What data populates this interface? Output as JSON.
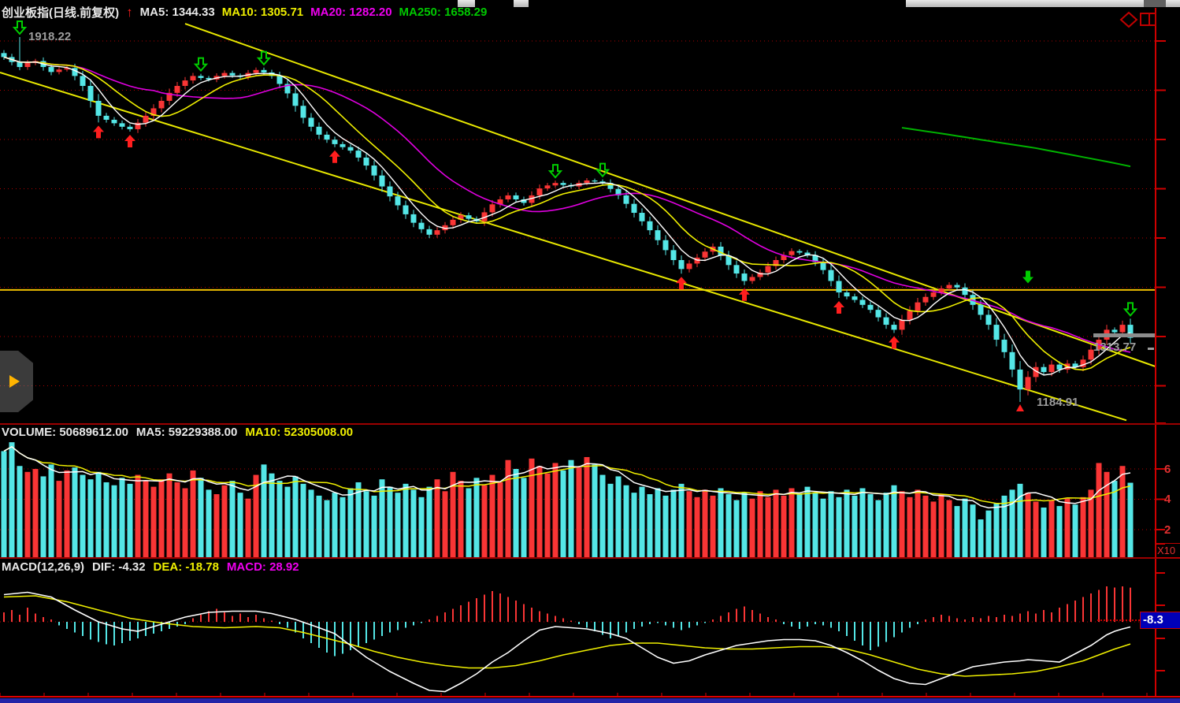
{
  "colors": {
    "up": "#f93535",
    "down": "#54e6e6",
    "ma5": "#ffffff",
    "ma10": "#efef00",
    "ma20": "#e000e0",
    "ma250": "#00b400",
    "grid": "#b00000",
    "axis": "#d00000",
    "trend": "#e8e800",
    "label_grey": "#9c9c9c",
    "badge_bg": "#0000b8",
    "buy_arrow": "#ff1e1e",
    "sell_arrow": "#00cc00"
  },
  "header": {
    "title": "创业板指(日线.前复权)",
    "trend_icon": "up-arrow",
    "ma5": "MA5: 1344.33",
    "ma10": "MA10: 1305.71",
    "ma20": "MA20: 1282.20",
    "ma250": "MA250: 1658.29"
  },
  "main": {
    "high_label": "1918.22",
    "low_label": "1184.91",
    "last_label": "1313.77"
  },
  "volume_pane": {
    "volume": "VOLUME: 50689612.00",
    "ma5": "MA5: 59229388.00",
    "ma10": "MA10: 52305008.00",
    "axis": {
      "t6": "6",
      "t4": "4",
      "t2": "2",
      "unit": "X10"
    }
  },
  "macd_pane": {
    "title": "MACD(12,26,9)",
    "dif": "DIF: -4.32",
    "dea": "DEA: -18.78",
    "macd": "MACD: 28.92",
    "badge": "-8.3"
  },
  "chart_data": {
    "type": "candlestick",
    "symbol": "创业板指",
    "period": "日线.前复权",
    "indicators": {
      "ma5": 1344.33,
      "ma10": 1305.71,
      "ma20": 1282.2,
      "ma250": 1658.29
    },
    "price": {
      "high_marker": 1918.22,
      "low_marker": 1184.91,
      "last": 1313.77,
      "horizontal_line": 1410,
      "closes": [
        1878,
        1868,
        1858,
        1866,
        1870,
        1858,
        1848,
        1853,
        1856,
        1840,
        1820,
        1790,
        1760,
        1752,
        1745,
        1738,
        1733,
        1746,
        1760,
        1775,
        1790,
        1806,
        1820,
        1831,
        1840,
        1836,
        1833,
        1840,
        1846,
        1841,
        1838,
        1846,
        1852,
        1847,
        1840,
        1824,
        1805,
        1780,
        1756,
        1738,
        1722,
        1712,
        1703,
        1697,
        1690,
        1676,
        1660,
        1640,
        1618,
        1598,
        1580,
        1562,
        1545,
        1532,
        1521,
        1530,
        1540,
        1551,
        1560,
        1553,
        1548,
        1566,
        1582,
        1592,
        1600,
        1592,
        1585,
        1600,
        1614,
        1620,
        1625,
        1621,
        1618,
        1625,
        1630,
        1628,
        1625,
        1613,
        1600,
        1583,
        1565,
        1548,
        1530,
        1510,
        1490,
        1470,
        1452,
        1463,
        1475,
        1487,
        1497,
        1479,
        1460,
        1443,
        1428,
        1436,
        1445,
        1458,
        1470,
        1480,
        1488,
        1485,
        1480,
        1466,
        1450,
        1428,
        1405,
        1397,
        1390,
        1380,
        1370,
        1355,
        1340,
        1330,
        1350,
        1368,
        1385,
        1396,
        1405,
        1413,
        1420,
        1415,
        1400,
        1380,
        1360,
        1340,
        1310,
        1285,
        1250,
        1210,
        1235,
        1255,
        1245,
        1260,
        1250,
        1262,
        1255,
        1270,
        1290,
        1310,
        1330,
        1325,
        1340,
        1313.77
      ],
      "wick_overrides": {
        "2": {
          "high": 1918.22
        },
        "129": {
          "low": 1184.91
        }
      },
      "trendlines": [
        {
          "from_i": 23,
          "from_price": 1945,
          "to_i": 146.2,
          "to_price": 1256
        },
        {
          "from_i": -0.5,
          "from_price": 1847,
          "to_i": 142.5,
          "to_price": 1148
        }
      ],
      "ma250_points": [
        [
          114,
          1736
        ],
        [
          120,
          1722
        ],
        [
          126,
          1707
        ],
        [
          131,
          1695
        ],
        [
          136,
          1680
        ],
        [
          140,
          1668
        ],
        [
          143,
          1658.29
        ]
      ],
      "buy_arrow_idx": [
        12,
        16,
        42,
        86,
        94,
        106,
        113
      ],
      "sell_arrow_idx": [
        2,
        25,
        33,
        70,
        76,
        143
      ],
      "sell_solid_arrows": [
        {
          "i": 130,
          "price": 1436
        }
      ],
      "low_triangle_idx": [
        129
      ]
    },
    "volume": {
      "current": 50689612,
      "ma5": 59229388,
      "ma10": 52305008,
      "unit_scale": "x10^7",
      "axis_ticks": [
        6,
        4,
        2
      ],
      "values_e7": [
        7.2,
        7.8,
        6.2,
        5.8,
        6.0,
        5.5,
        6.3,
        5.2,
        5.9,
        6.1,
        5.6,
        5.3,
        5.8,
        5.1,
        4.9,
        5.4,
        5.0,
        5.6,
        5.2,
        4.8,
        5.3,
        5.7,
        5.1,
        4.7,
        5.9,
        5.4,
        4.6,
        4.3,
        4.9,
        5.2,
        4.4,
        4.0,
        5.6,
        6.3,
        5.7,
        5.2,
        4.8,
        5.5,
        5.0,
        4.6,
        4.2,
        3.9,
        4.4,
        4.1,
        4.7,
        5.1,
        4.5,
        4.2,
        5.3,
        4.8,
        4.4,
        5.0,
        4.6,
        4.1,
        4.8,
        5.3,
        4.5,
        5.8,
        5.2,
        4.7,
        5.4,
        4.9,
        5.6,
        5.1,
        6.6,
        6.0,
        5.4,
        6.7,
        6.2,
        5.7,
        6.4,
        5.9,
        6.6,
        6.1,
        6.8,
        6.3,
        5.6,
        5.0,
        5.5,
        4.9,
        4.4,
        4.8,
        4.3,
        4.7,
        4.2,
        4.6,
        5.0,
        4.5,
        4.1,
        4.6,
        4.2,
        4.7,
        4.3,
        3.9,
        4.4,
        4.0,
        4.5,
        4.1,
        4.6,
        4.2,
        4.7,
        4.3,
        4.8,
        4.4,
        4.0,
        4.5,
        4.1,
        4.6,
        4.2,
        4.7,
        4.3,
        3.9,
        4.4,
        4.9,
        4.5,
        4.1,
        4.6,
        4.2,
        3.8,
        4.3,
        3.9,
        3.5,
        4.0,
        3.6,
        2.6,
        3.2,
        3.7,
        4.2,
        4.6,
        5.0,
        4.4,
        3.8,
        3.4,
        3.9,
        3.5,
        4.0,
        3.6,
        4.1,
        4.6,
        6.4,
        5.8,
        5.2,
        6.2,
        5.07
      ]
    },
    "macd": {
      "params": "12,26,9",
      "dif": -4.32,
      "dea": -18.78,
      "macd": 28.92,
      "hist": [
        8,
        10,
        6,
        12,
        7,
        4,
        2,
        -3,
        -6,
        -9,
        -12,
        -15,
        -17,
        -19,
        -20,
        -18,
        -16,
        -14,
        -12,
        -10,
        -8,
        -6,
        -4,
        -2,
        3,
        6,
        9,
        11,
        8,
        5,
        7,
        4,
        6,
        3,
        1,
        -2,
        -5,
        -9,
        -14,
        -18,
        -22,
        -26,
        -29,
        -27,
        -24,
        -21,
        -18,
        -15,
        -12,
        -9,
        -7,
        -5,
        -3,
        -1,
        2,
        5,
        8,
        11,
        14,
        17,
        20,
        23,
        26,
        24,
        21,
        18,
        15,
        12,
        9,
        7,
        5,
        3,
        1,
        -2,
        -5,
        -8,
        -11,
        -14,
        -12,
        -9,
        -6,
        -4,
        -2,
        -1,
        -3,
        -5,
        -7,
        -5,
        -3,
        -1,
        2,
        5,
        8,
        11,
        13,
        10,
        7,
        4,
        2,
        -2,
        -4,
        -6,
        -4,
        -2,
        -3,
        -5,
        -8,
        -12,
        -16,
        -20,
        -24,
        -21,
        -17,
        -13,
        -9,
        -5,
        -2,
        2,
        4,
        6,
        5,
        3,
        2,
        4,
        3,
        5,
        4,
        6,
        5,
        7,
        9,
        7,
        10,
        8,
        12,
        15,
        18,
        21,
        24,
        27,
        30,
        29,
        30,
        28.92
      ],
      "dif_points": [
        [
          0,
          23
        ],
        [
          3,
          25
        ],
        [
          6,
          21
        ],
        [
          9,
          10
        ],
        [
          12,
          0
        ],
        [
          15,
          -6
        ],
        [
          17,
          -8
        ],
        [
          20,
          -2
        ],
        [
          23,
          4
        ],
        [
          26,
          8
        ],
        [
          29,
          9
        ],
        [
          32,
          9
        ],
        [
          34,
          7
        ],
        [
          37,
          2
        ],
        [
          40,
          -5
        ],
        [
          42,
          -10
        ],
        [
          44,
          -20
        ],
        [
          46,
          -30
        ],
        [
          49,
          -42
        ],
        [
          52,
          -52
        ],
        [
          54,
          -58
        ],
        [
          56,
          -59
        ],
        [
          58,
          -52
        ],
        [
          60,
          -44
        ],
        [
          62,
          -34
        ],
        [
          64,
          -26
        ],
        [
          66,
          -16
        ],
        [
          68,
          -7
        ],
        [
          70,
          -4
        ],
        [
          72,
          -5
        ],
        [
          74,
          -6
        ],
        [
          77,
          -10
        ],
        [
          79,
          -14
        ],
        [
          81,
          -22
        ],
        [
          83,
          -30
        ],
        [
          85,
          -35
        ],
        [
          87,
          -33
        ],
        [
          89,
          -28
        ],
        [
          91,
          -24
        ],
        [
          93,
          -20
        ],
        [
          95,
          -18
        ],
        [
          97,
          -16
        ],
        [
          99,
          -15
        ],
        [
          101,
          -15
        ],
        [
          103,
          -16
        ],
        [
          105,
          -20
        ],
        [
          107,
          -26
        ],
        [
          109,
          -33
        ],
        [
          111,
          -41
        ],
        [
          113,
          -48
        ],
        [
          115,
          -52
        ],
        [
          117,
          -53
        ],
        [
          119,
          -48
        ],
        [
          121,
          -43
        ],
        [
          123,
          -38
        ],
        [
          125,
          -36
        ],
        [
          127,
          -34
        ],
        [
          129,
          -33
        ],
        [
          130,
          -32
        ],
        [
          132,
          -33
        ],
        [
          134,
          -34
        ],
        [
          136,
          -27
        ],
        [
          138,
          -20
        ],
        [
          140,
          -11
        ],
        [
          141,
          -8
        ],
        [
          142,
          -6
        ],
        [
          143,
          -4.32
        ]
      ],
      "dea_points": [
        [
          0,
          21
        ],
        [
          4,
          22
        ],
        [
          8,
          17
        ],
        [
          12,
          10
        ],
        [
          16,
          3
        ],
        [
          20,
          -1
        ],
        [
          24,
          -4
        ],
        [
          28,
          -5
        ],
        [
          32,
          -4
        ],
        [
          35,
          -5
        ],
        [
          38,
          -9
        ],
        [
          41,
          -14
        ],
        [
          44,
          -19
        ],
        [
          47,
          -25
        ],
        [
          50,
          -30
        ],
        [
          53,
          -34
        ],
        [
          56,
          -37
        ],
        [
          59,
          -39
        ],
        [
          62,
          -39
        ],
        [
          65,
          -37
        ],
        [
          68,
          -33
        ],
        [
          71,
          -28
        ],
        [
          74,
          -24
        ],
        [
          77,
          -20
        ],
        [
          80,
          -18
        ],
        [
          83,
          -18
        ],
        [
          86,
          -20
        ],
        [
          89,
          -22
        ],
        [
          92,
          -23
        ],
        [
          95,
          -23
        ],
        [
          98,
          -22
        ],
        [
          101,
          -21
        ],
        [
          104,
          -21
        ],
        [
          107,
          -23
        ],
        [
          110,
          -28
        ],
        [
          113,
          -34
        ],
        [
          116,
          -40
        ],
        [
          119,
          -44
        ],
        [
          122,
          -46
        ],
        [
          125,
          -45
        ],
        [
          128,
          -44
        ],
        [
          131,
          -42
        ],
        [
          134,
          -38
        ],
        [
          137,
          -33
        ],
        [
          139,
          -28
        ],
        [
          141,
          -23
        ],
        [
          143,
          -18.78
        ]
      ]
    }
  }
}
